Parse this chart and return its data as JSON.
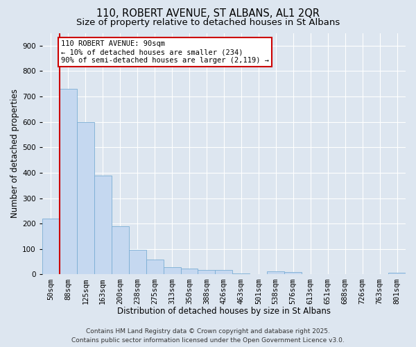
{
  "title_line1": "110, ROBERT AVENUE, ST ALBANS, AL1 2QR",
  "title_line2": "Size of property relative to detached houses in St Albans",
  "xlabel": "Distribution of detached houses by size in St Albans",
  "ylabel": "Number of detached properties",
  "categories": [
    "50sqm",
    "88sqm",
    "125sqm",
    "163sqm",
    "200sqm",
    "238sqm",
    "275sqm",
    "313sqm",
    "350sqm",
    "388sqm",
    "426sqm",
    "463sqm",
    "501sqm",
    "538sqm",
    "576sqm",
    "613sqm",
    "651sqm",
    "688sqm",
    "726sqm",
    "763sqm",
    "801sqm"
  ],
  "values": [
    220,
    730,
    600,
    390,
    190,
    98,
    58,
    28,
    22,
    18,
    17,
    4,
    0,
    12,
    10,
    2,
    0,
    0,
    0,
    0,
    8
  ],
  "bar_color": "#c5d8f0",
  "bar_edge_color": "#7aadd4",
  "marker_color": "#cc0000",
  "annotation_text_line1": "110 ROBERT AVENUE: 90sqm",
  "annotation_text_line2": "← 10% of detached houses are smaller (234)",
  "annotation_text_line3": "90% of semi-detached houses are larger (2,119) →",
  "annotation_box_color": "#ffffff",
  "annotation_box_edge": "#cc0000",
  "ylim": [
    0,
    950
  ],
  "yticks": [
    0,
    100,
    200,
    300,
    400,
    500,
    600,
    700,
    800,
    900
  ],
  "background_color": "#dde6f0",
  "grid_color": "#ffffff",
  "footer_line1": "Contains HM Land Registry data © Crown copyright and database right 2025.",
  "footer_line2": "Contains public sector information licensed under the Open Government Licence v3.0.",
  "title_fontsize": 10.5,
  "subtitle_fontsize": 9.5,
  "axis_label_fontsize": 8.5,
  "tick_fontsize": 7.5,
  "annotation_fontsize": 7.5,
  "footer_fontsize": 6.5
}
